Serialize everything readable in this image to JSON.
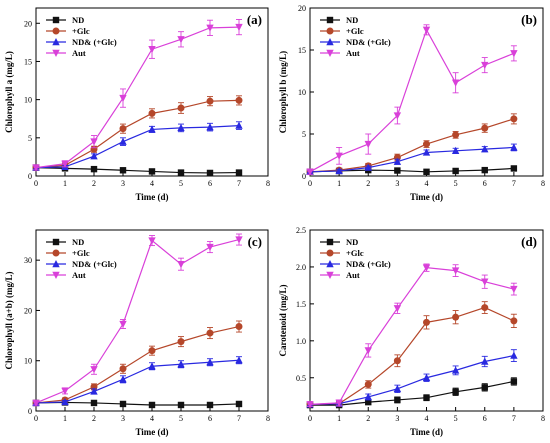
{
  "series_style": [
    {
      "name": "ND",
      "color": "#111111",
      "marker": "square"
    },
    {
      "name": "+Glc",
      "color": "#b5472a",
      "marker": "circle"
    },
    {
      "name": "ND& (+Glc)",
      "color": "#2929e0",
      "marker": "triangle-up"
    },
    {
      "name": "Aut",
      "color": "#d940d9",
      "marker": "triangle-down"
    }
  ],
  "chart_data": [
    {
      "type": "line",
      "panel_label": "(a)",
      "xlabel": "Time (d)",
      "ylabel": "Chlorophyll a (mg/L)",
      "xlim": [
        0,
        8
      ],
      "ylim": [
        0,
        22
      ],
      "xticks": [
        "0",
        "1",
        "2",
        "3",
        "4",
        "5",
        "6",
        "7",
        "8"
      ],
      "yticks": [
        "0",
        "5",
        "10",
        "15",
        "20"
      ],
      "ytick_values": [
        0,
        5,
        10,
        15,
        20
      ],
      "legend": "top-left",
      "x": [
        0,
        1,
        2,
        3,
        4,
        5,
        6,
        7
      ],
      "series": [
        {
          "name": "ND",
          "values": [
            1.1,
            1.0,
            0.9,
            0.75,
            0.6,
            0.45,
            0.4,
            0.45
          ],
          "err": [
            0.1,
            0.1,
            0.1,
            0.1,
            0.1,
            0.1,
            0.1,
            0.1
          ]
        },
        {
          "name": "+Glc",
          "values": [
            1.1,
            1.4,
            3.5,
            6.2,
            8.2,
            8.9,
            9.8,
            9.9
          ],
          "err": [
            0.2,
            0.3,
            0.4,
            0.6,
            0.6,
            0.7,
            0.6,
            0.6
          ]
        },
        {
          "name": "ND& (+Glc)",
          "values": [
            1.1,
            1.2,
            2.6,
            4.5,
            6.1,
            6.3,
            6.4,
            6.6
          ],
          "err": [
            0.2,
            0.2,
            0.3,
            0.5,
            0.4,
            0.5,
            0.5,
            0.5
          ]
        },
        {
          "name": "Aut",
          "values": [
            1.1,
            1.6,
            4.5,
            10.2,
            16.6,
            17.9,
            19.4,
            19.5
          ],
          "err": [
            0.3,
            0.4,
            0.8,
            1.2,
            1.2,
            1.0,
            1.0,
            1.0
          ]
        }
      ]
    },
    {
      "type": "line",
      "panel_label": "(b)",
      "xlabel": "Time (d)",
      "ylabel": "Chlorophyll b (mg/L)",
      "xlim": [
        0,
        8
      ],
      "ylim": [
        0,
        20
      ],
      "xticks": [
        "0",
        "1",
        "2",
        "3",
        "4",
        "5",
        "6",
        "7",
        "8"
      ],
      "yticks": [
        "0",
        "5",
        "10",
        "15",
        "20"
      ],
      "ytick_values": [
        0,
        5,
        10,
        15,
        20
      ],
      "legend": "top-left",
      "x": [
        0,
        1,
        2,
        3,
        4,
        5,
        6,
        7
      ],
      "series": [
        {
          "name": "ND",
          "values": [
            0.5,
            0.6,
            0.7,
            0.65,
            0.5,
            0.6,
            0.7,
            0.9
          ],
          "err": [
            0.1,
            0.1,
            0.1,
            0.1,
            0.1,
            0.1,
            0.1,
            0.1
          ]
        },
        {
          "name": "+Glc",
          "values": [
            0.5,
            0.7,
            1.2,
            2.2,
            3.8,
            4.9,
            5.7,
            6.8
          ],
          "err": [
            0.2,
            0.2,
            0.3,
            0.4,
            0.4,
            0.4,
            0.5,
            0.6
          ]
        },
        {
          "name": "ND& (+Glc)",
          "values": [
            0.5,
            0.6,
            1.0,
            1.7,
            2.8,
            3.0,
            3.2,
            3.4
          ],
          "err": [
            0.1,
            0.2,
            0.2,
            0.3,
            0.3,
            0.3,
            0.3,
            0.4
          ]
        },
        {
          "name": "Aut",
          "values": [
            0.5,
            2.4,
            3.8,
            7.2,
            17.4,
            11.1,
            13.2,
            14.6
          ],
          "err": [
            0.3,
            1.0,
            1.2,
            1.0,
            0.6,
            1.2,
            0.9,
            0.9
          ]
        }
      ]
    },
    {
      "type": "line",
      "panel_label": "(c)",
      "xlabel": "Time (d)",
      "ylabel": "Chlorophyll (a+b) (mg/L)",
      "xlim": [
        0,
        8
      ],
      "ylim": [
        0,
        36
      ],
      "xticks": [
        "0",
        "1",
        "2",
        "3",
        "4",
        "5",
        "6",
        "7",
        "8"
      ],
      "yticks": [
        "0",
        "10",
        "20",
        "30"
      ],
      "ytick_values": [
        0,
        10,
        20,
        30
      ],
      "legend": "top-left",
      "x": [
        0,
        1,
        2,
        3,
        4,
        5,
        6,
        7
      ],
      "series": [
        {
          "name": "ND",
          "values": [
            1.6,
            1.7,
            1.6,
            1.4,
            1.2,
            1.2,
            1.2,
            1.4
          ],
          "err": [
            0.2,
            0.2,
            0.2,
            0.2,
            0.2,
            0.2,
            0.2,
            0.2
          ]
        },
        {
          "name": "+Glc",
          "values": [
            1.6,
            2.2,
            4.8,
            8.4,
            12.0,
            13.8,
            15.5,
            16.8
          ],
          "err": [
            0.3,
            0.4,
            0.6,
            0.9,
            0.9,
            1.0,
            1.1,
            1.1
          ]
        },
        {
          "name": "ND& (+Glc)",
          "values": [
            1.6,
            1.8,
            3.9,
            6.3,
            8.9,
            9.3,
            9.7,
            10.1
          ],
          "err": [
            0.3,
            0.3,
            0.5,
            0.7,
            0.7,
            0.7,
            0.7,
            0.7
          ]
        },
        {
          "name": "Aut",
          "values": [
            1.6,
            4.0,
            8.3,
            17.3,
            33.9,
            29.2,
            32.6,
            34.1
          ],
          "err": [
            0.4,
            0.6,
            1.0,
            0.9,
            1.0,
            1.2,
            1.1,
            1.1
          ]
        }
      ]
    },
    {
      "type": "line",
      "panel_label": "(d)",
      "xlabel": "Time (d)",
      "ylabel": "Carotenoid (mg/L)",
      "xlim": [
        0,
        8
      ],
      "ylim": [
        0.05,
        2.5
      ],
      "xticks": [
        "0",
        "1",
        "2",
        "3",
        "4",
        "5",
        "6",
        "7",
        "8"
      ],
      "yticks": [
        "0.5",
        "1.0",
        "1.5",
        "2.0",
        "2.5"
      ],
      "ytick_values": [
        0.5,
        1.0,
        1.5,
        2.0,
        2.5
      ],
      "legend": "top-left",
      "x": [
        0,
        1,
        2,
        3,
        4,
        5,
        6,
        7
      ],
      "series": [
        {
          "name": "ND",
          "values": [
            0.13,
            0.13,
            0.17,
            0.2,
            0.23,
            0.31,
            0.37,
            0.45
          ],
          "err": [
            0.03,
            0.03,
            0.03,
            0.04,
            0.04,
            0.05,
            0.05,
            0.05
          ]
        },
        {
          "name": "+Glc",
          "values": [
            0.14,
            0.15,
            0.41,
            0.73,
            1.25,
            1.32,
            1.45,
            1.27
          ],
          "err": [
            0.03,
            0.04,
            0.05,
            0.08,
            0.09,
            0.09,
            0.08,
            0.09
          ]
        },
        {
          "name": "ND& (+Glc)",
          "values": [
            0.14,
            0.15,
            0.24,
            0.35,
            0.5,
            0.6,
            0.72,
            0.8
          ],
          "err": [
            0.03,
            0.03,
            0.04,
            0.05,
            0.05,
            0.06,
            0.07,
            0.08
          ]
        },
        {
          "name": "Aut",
          "values": [
            0.14,
            0.16,
            0.87,
            1.44,
            1.99,
            1.95,
            1.8,
            1.7
          ],
          "err": [
            0.03,
            0.04,
            0.09,
            0.07,
            0.05,
            0.08,
            0.09,
            0.08
          ]
        }
      ]
    }
  ]
}
